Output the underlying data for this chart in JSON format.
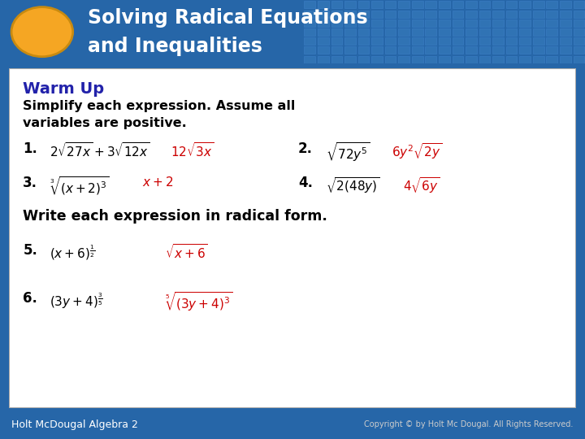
{
  "title_line1": "Solving Radical Equations",
  "title_line2": "and Inequalities",
  "header_bg": "#2666A8",
  "header_text_color": "#FFFFFF",
  "oval_color": "#F5A623",
  "section1_header": "Warm Up",
  "section1_header_color": "#2222AA",
  "q1_label": "1.",
  "q1_expr": "$2\\sqrt{27x} + 3\\sqrt{12x}$",
  "q1_answer": "$12\\sqrt{3x}$",
  "q2_label": "2.",
  "q2_expr": "$\\sqrt{72y^5}$",
  "q2_answer": "$6y^2\\sqrt{2y}$",
  "q3_label": "3.",
  "q3_expr": "$\\sqrt[3]{(x+2)^3}$",
  "q3_answer": "$x+2$",
  "q4_label": "4.",
  "q4_expr": "$\\sqrt{2(48y)}$",
  "q4_answer": "$4\\sqrt{6y}$",
  "section2_header": "Write each expression in radical form.",
  "q5_label": "5.",
  "q5_expr": "$(x+6)^{\\frac{1}{2}}$",
  "q5_answer": "$\\sqrt{x+6}$",
  "q6_label": "6.",
  "q6_expr": "$(3y+4)^{\\frac{3}{5}}$",
  "q6_answer": "$\\sqrt[5]{(3y+4)^3}$",
  "answer_color": "#CC0000",
  "footer_text_left": "Holt McDougal Algebra 2",
  "footer_text_right": "Copyright © by Holt Mc Dougal. All Rights Reserved.",
  "footer_bg": "#1A4E7A",
  "footer_text_color": "#FFFFFF",
  "content_bg": "#FFFFFF",
  "border_color": "#AAAAAA",
  "label_color": "#000000",
  "expr_color": "#000000",
  "instr_color": "#000000"
}
